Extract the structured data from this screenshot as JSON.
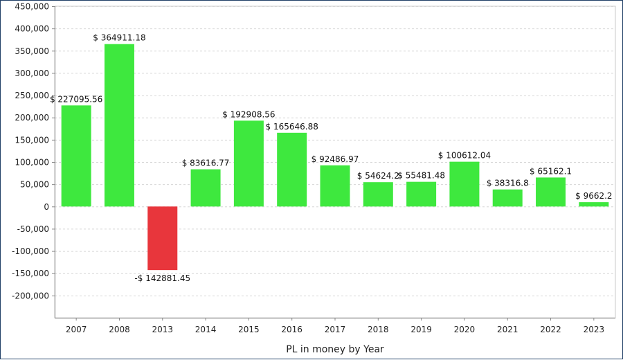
{
  "chart_data": {
    "type": "bar",
    "categories": [
      "2007",
      "2008",
      "2013",
      "2014",
      "2015",
      "2016",
      "2017",
      "2018",
      "2019",
      "2020",
      "2021",
      "2022",
      "2023"
    ],
    "values": [
      227095.56,
      364911.18,
      -142881.45,
      83616.77,
      192908.56,
      165646.88,
      92486.97,
      54624.2,
      55481.48,
      100612.04,
      38316.8,
      65162.1,
      9662.2
    ],
    "data_labels": [
      "$ 227095.56",
      "$ 364911.18",
      "-$ 142881.45",
      "$ 83616.77",
      "$ 192908.56",
      "$ 165646.88",
      "$ 92486.97",
      "$ 54624.2",
      "$ 55481.48",
      "$ 100612.04",
      "$ 38316.8",
      "$ 65162.1",
      "$ 9662.2"
    ],
    "xlabel": "PL in money by Year",
    "ylabel": "",
    "ylim": [
      -250000,
      450000
    ],
    "y_ticks": [
      450000,
      400000,
      350000,
      300000,
      250000,
      200000,
      150000,
      100000,
      50000,
      0,
      -50000,
      -100000,
      -150000,
      -200000
    ],
    "y_tick_labels": [
      "450,000",
      "400,000",
      "350,000",
      "300,000",
      "250,000",
      "200,000",
      "150,000",
      "100,000",
      "50,000",
      "0",
      "-50,000",
      "-100,000",
      "-150,000",
      "-200,000"
    ],
    "grid": true,
    "colors": {
      "positive": "#3ee83e",
      "negative": "#e8363c",
      "grid": "#d6d6d6",
      "axis": "#888888",
      "frame": "#1f3f66"
    }
  }
}
